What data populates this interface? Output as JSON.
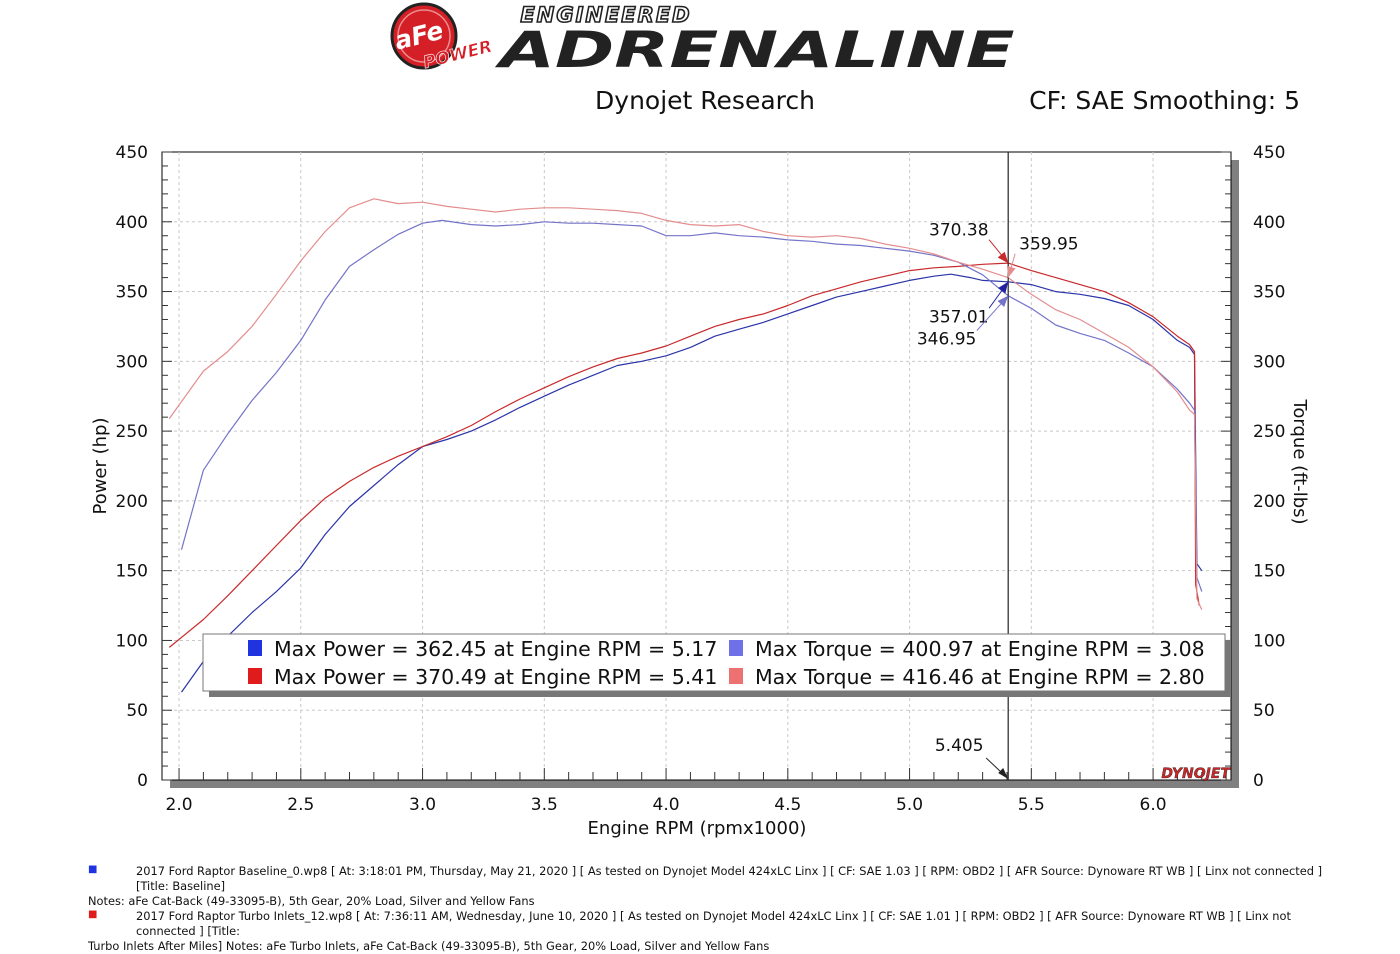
{
  "header": {
    "brand_badge_top": "aFe",
    "brand_badge_bottom": "POWER",
    "tagline_top": "ENGINEERED",
    "tagline_main": "ADRENALINE",
    "title": "Dynojet Research",
    "cf_label": "CF: SAE Smoothing: 5"
  },
  "chart_data": {
    "type": "line",
    "xlabel": "Engine RPM (rpmx1000)",
    "ylabel_left": "Power (hp)",
    "ylabel_right": "Torque (ft-lbs)",
    "xlim": [
      1.93,
      6.32
    ],
    "ylim": [
      0,
      450
    ],
    "x_ticks": [
      "2.0",
      "2.5",
      "3.0",
      "3.5",
      "4.0",
      "4.5",
      "5.0",
      "5.5",
      "6.0"
    ],
    "x_tick_values": [
      2.0,
      2.5,
      3.0,
      3.5,
      4.0,
      4.5,
      5.0,
      5.5,
      6.0
    ],
    "y_ticks": [
      "0",
      "50",
      "100",
      "150",
      "200",
      "250",
      "300",
      "350",
      "400",
      "450"
    ],
    "y_tick_values": [
      0,
      50,
      100,
      150,
      200,
      250,
      300,
      350,
      400,
      450
    ],
    "grid": true,
    "cursor_x": 5.405,
    "cursor_label": "5.405",
    "series": [
      {
        "key": "baseline_power",
        "color": "#2b34a8",
        "points": [
          [
            2.01,
            63
          ],
          [
            2.1,
            85
          ],
          [
            2.2,
            103
          ],
          [
            2.3,
            120
          ],
          [
            2.4,
            135
          ],
          [
            2.5,
            152
          ],
          [
            2.6,
            176
          ],
          [
            2.7,
            196
          ],
          [
            2.8,
            211
          ],
          [
            2.9,
            226
          ],
          [
            3.0,
            239
          ],
          [
            3.1,
            244
          ],
          [
            3.2,
            250
          ],
          [
            3.3,
            258
          ],
          [
            3.4,
            267
          ],
          [
            3.5,
            275
          ],
          [
            3.6,
            283
          ],
          [
            3.7,
            290
          ],
          [
            3.8,
            297
          ],
          [
            3.9,
            300
          ],
          [
            4.0,
            304
          ],
          [
            4.1,
            310
          ],
          [
            4.2,
            318
          ],
          [
            4.3,
            323
          ],
          [
            4.4,
            328
          ],
          [
            4.5,
            334
          ],
          [
            4.6,
            340
          ],
          [
            4.7,
            346
          ],
          [
            4.8,
            350
          ],
          [
            4.9,
            354
          ],
          [
            5.0,
            358
          ],
          [
            5.1,
            361
          ],
          [
            5.17,
            362.45
          ],
          [
            5.25,
            360
          ],
          [
            5.3,
            358
          ],
          [
            5.405,
            357.01
          ],
          [
            5.5,
            355
          ],
          [
            5.6,
            350
          ],
          [
            5.7,
            348
          ],
          [
            5.8,
            345
          ],
          [
            5.9,
            340
          ],
          [
            6.0,
            330
          ],
          [
            6.1,
            315
          ],
          [
            6.15,
            310
          ],
          [
            6.17,
            305
          ],
          [
            6.18,
            155
          ],
          [
            6.2,
            150
          ]
        ]
      },
      {
        "key": "modified_power",
        "color": "#c8292b",
        "points": [
          [
            1.96,
            95
          ],
          [
            2.1,
            115
          ],
          [
            2.2,
            132
          ],
          [
            2.3,
            150
          ],
          [
            2.4,
            168
          ],
          [
            2.5,
            186
          ],
          [
            2.6,
            202
          ],
          [
            2.7,
            214
          ],
          [
            2.8,
            224
          ],
          [
            2.9,
            232
          ],
          [
            3.0,
            239
          ],
          [
            3.1,
            246
          ],
          [
            3.2,
            254
          ],
          [
            3.3,
            264
          ],
          [
            3.4,
            273
          ],
          [
            3.5,
            281
          ],
          [
            3.6,
            289
          ],
          [
            3.7,
            296
          ],
          [
            3.8,
            302
          ],
          [
            3.9,
            306
          ],
          [
            4.0,
            311
          ],
          [
            4.1,
            318
          ],
          [
            4.2,
            325
          ],
          [
            4.3,
            330
          ],
          [
            4.4,
            334
          ],
          [
            4.5,
            340
          ],
          [
            4.6,
            347
          ],
          [
            4.7,
            352
          ],
          [
            4.8,
            357
          ],
          [
            4.9,
            361
          ],
          [
            5.0,
            365
          ],
          [
            5.1,
            367
          ],
          [
            5.2,
            368
          ],
          [
            5.3,
            369.5
          ],
          [
            5.405,
            370.38
          ],
          [
            5.5,
            365
          ],
          [
            5.6,
            360
          ],
          [
            5.7,
            355
          ],
          [
            5.8,
            350
          ],
          [
            5.9,
            342
          ],
          [
            6.0,
            332
          ],
          [
            6.1,
            318
          ],
          [
            6.15,
            312
          ],
          [
            6.17,
            307
          ],
          [
            6.175,
            140
          ],
          [
            6.19,
            125
          ]
        ]
      },
      {
        "key": "baseline_torque",
        "color": "#7474c9",
        "points": [
          [
            2.01,
            165
          ],
          [
            2.1,
            222
          ],
          [
            2.2,
            248
          ],
          [
            2.3,
            272
          ],
          [
            2.4,
            292
          ],
          [
            2.5,
            315
          ],
          [
            2.6,
            344
          ],
          [
            2.7,
            368
          ],
          [
            2.8,
            380
          ],
          [
            2.9,
            391
          ],
          [
            3.0,
            399
          ],
          [
            3.08,
            400.97
          ],
          [
            3.2,
            398
          ],
          [
            3.3,
            397
          ],
          [
            3.4,
            398
          ],
          [
            3.5,
            400
          ],
          [
            3.6,
            399
          ],
          [
            3.7,
            399
          ],
          [
            3.8,
            398
          ],
          [
            3.9,
            397
          ],
          [
            4.0,
            390
          ],
          [
            4.1,
            390
          ],
          [
            4.2,
            392
          ],
          [
            4.3,
            390
          ],
          [
            4.4,
            389
          ],
          [
            4.5,
            387
          ],
          [
            4.6,
            386
          ],
          [
            4.7,
            384
          ],
          [
            4.8,
            383
          ],
          [
            4.9,
            381
          ],
          [
            5.0,
            379
          ],
          [
            5.1,
            376
          ],
          [
            5.2,
            371
          ],
          [
            5.3,
            362
          ],
          [
            5.405,
            346.95
          ],
          [
            5.5,
            338
          ],
          [
            5.6,
            326
          ],
          [
            5.7,
            320
          ],
          [
            5.8,
            315
          ],
          [
            5.9,
            306
          ],
          [
            6.0,
            296
          ],
          [
            6.1,
            280
          ],
          [
            6.15,
            270
          ],
          [
            6.17,
            265
          ],
          [
            6.18,
            145
          ],
          [
            6.2,
            135
          ]
        ]
      },
      {
        "key": "modified_torque",
        "color": "#e38d8e",
        "points": [
          [
            1.96,
            259
          ],
          [
            2.1,
            293
          ],
          [
            2.2,
            307
          ],
          [
            2.3,
            325
          ],
          [
            2.4,
            348
          ],
          [
            2.5,
            372
          ],
          [
            2.6,
            393
          ],
          [
            2.7,
            410
          ],
          [
            2.8,
            416.46
          ],
          [
            2.9,
            413
          ],
          [
            3.0,
            414
          ],
          [
            3.1,
            411
          ],
          [
            3.2,
            409
          ],
          [
            3.3,
            407
          ],
          [
            3.4,
            409
          ],
          [
            3.5,
            410
          ],
          [
            3.6,
            410
          ],
          [
            3.7,
            409
          ],
          [
            3.8,
            408
          ],
          [
            3.9,
            406
          ],
          [
            4.0,
            401
          ],
          [
            4.1,
            398
          ],
          [
            4.2,
            397
          ],
          [
            4.3,
            398
          ],
          [
            4.4,
            393
          ],
          [
            4.5,
            390
          ],
          [
            4.6,
            389
          ],
          [
            4.7,
            390
          ],
          [
            4.8,
            388
          ],
          [
            4.9,
            384
          ],
          [
            5.0,
            381
          ],
          [
            5.1,
            377
          ],
          [
            5.2,
            371
          ],
          [
            5.3,
            366
          ],
          [
            5.405,
            359.95
          ],
          [
            5.5,
            348
          ],
          [
            5.6,
            337
          ],
          [
            5.7,
            330
          ],
          [
            5.8,
            320
          ],
          [
            5.9,
            310
          ],
          [
            6.0,
            296
          ],
          [
            6.1,
            278
          ],
          [
            6.15,
            265
          ],
          [
            6.17,
            262
          ],
          [
            6.18,
            130
          ],
          [
            6.2,
            122
          ]
        ]
      }
    ],
    "annotations": [
      {
        "text": "370.38",
        "color": "#c8292b",
        "x": 5.405,
        "y": 370.38,
        "tx": 5.08,
        "ty": 390
      },
      {
        "text": "359.95",
        "color": "#e38d8e",
        "x": 5.405,
        "y": 359.95,
        "tx": 5.45,
        "ty": 380
      },
      {
        "text": "357.01",
        "color": "#2222a0",
        "x": 5.405,
        "y": 357.01,
        "tx": 5.08,
        "ty": 328
      },
      {
        "text": "346.95",
        "color": "#7474c9",
        "x": 5.405,
        "y": 346.95,
        "tx": 5.03,
        "ty": 312
      }
    ],
    "legend": {
      "placement": "bottom-center",
      "entries": [
        {
          "text": "Max Power = 362.45 at Engine RPM = 5.17",
          "color": "#1f33e0"
        },
        {
          "text": "Max Torque = 400.97 at Engine RPM = 3.08",
          "color": "#6f6fe8"
        },
        {
          "text": "Max Power = 370.49 at Engine RPM = 5.41",
          "color": "#e01b1b"
        },
        {
          "text": "Max Torque = 416.46 at Engine RPM = 2.80",
          "color": "#ee7171"
        }
      ]
    },
    "watermark": "DYNOJET"
  },
  "notes": [
    {
      "marker_color": "#1f33e0",
      "text": "2017 Ford Raptor Baseline_0.wp8 [ At: 3:18:01 PM, Thursday, May 21, 2020 ] [ As tested on Dynojet Model 424xLC Linx ] [ CF: SAE 1.03 ] [ RPM: OBD2 ] [ AFR Source: Dynoware RT WB ] [ Linx not connected ] [Title: Baseline]",
      "continuation": "Notes: aFe Cat-Back (49-33095-B), 5th Gear, 20% Load, Silver and Yellow Fans"
    },
    {
      "marker_color": "#e01b1b",
      "text": "2017 Ford Raptor Turbo Inlets_12.wp8 [ At: 7:36:11 AM, Wednesday, June 10, 2020 ] [ As tested on Dynojet Model 424xLC Linx ] [ CF: SAE 1.01 ] [ RPM: OBD2 ] [ AFR Source: Dynoware RT WB ] [ Linx not connected ] [Title:",
      "continuation": "Turbo Inlets After Miles]  Notes: aFe Turbo Inlets, aFe Cat-Back (49-33095-B), 5th Gear, 20% Load, Silver and Yellow Fans"
    }
  ]
}
